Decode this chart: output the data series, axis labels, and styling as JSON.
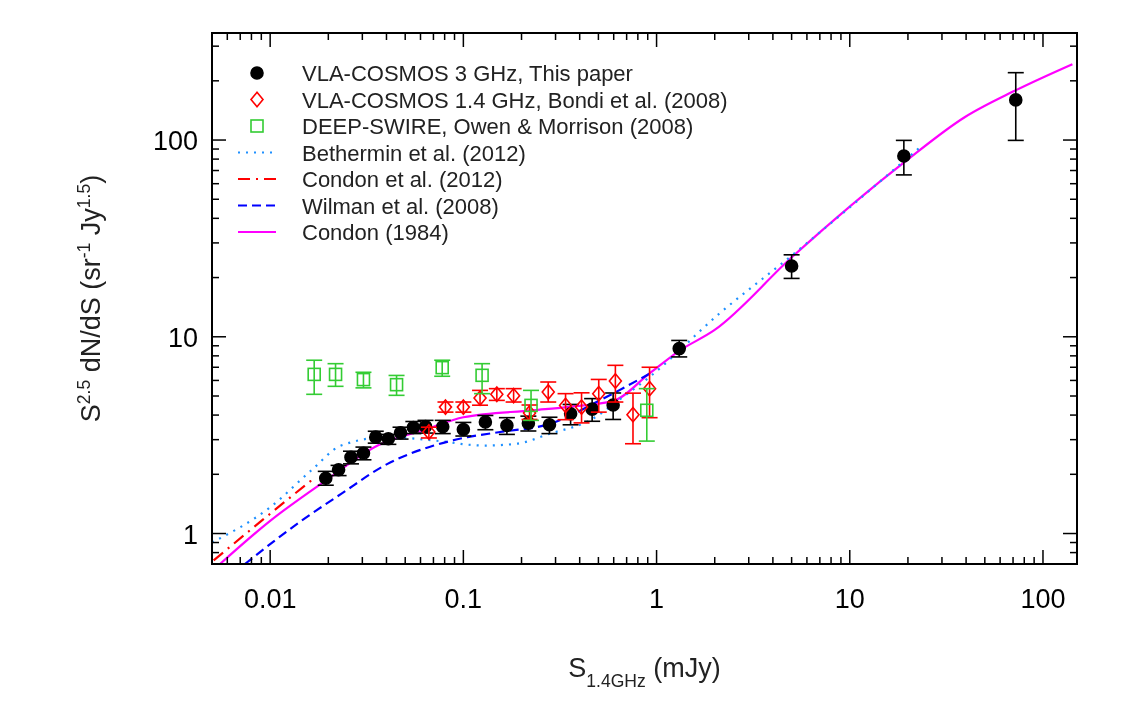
{
  "chart_data": {
    "type": "scatter",
    "xlabel": "S$_{1.4GHz}$ (mJy)",
    "ylabel": "S$^{2.5}$ dN/dS  (sr$^{-1}$ Jy$^{1.5}$)",
    "log": "xy",
    "xlim": [
      0.005,
      150
    ],
    "ylim": [
      0.7,
      350
    ],
    "xticks": [
      {
        "value": 0.005,
        "label": null
      },
      {
        "value": 0.006,
        "label": null
      },
      {
        "value": 0.007,
        "label": null
      },
      {
        "value": 0.008,
        "label": null
      },
      {
        "value": 0.009,
        "label": null
      },
      0.01,
      {
        "value": 0.02,
        "label": null
      },
      {
        "value": 0.03,
        "label": null
      },
      {
        "value": 0.04,
        "label": null
      },
      {
        "value": 0.05,
        "label": null
      },
      {
        "value": 0.06,
        "label": null
      },
      {
        "value": 0.07,
        "label": null
      },
      {
        "value": 0.08,
        "label": null
      },
      {
        "value": 0.09,
        "label": null
      },
      0.1,
      {
        "value": 0.2,
        "label": null
      },
      {
        "value": 0.3,
        "label": null
      },
      {
        "value": 0.4,
        "label": null
      },
      {
        "value": 0.5,
        "label": null
      },
      {
        "value": 0.6,
        "label": null
      },
      {
        "value": 0.7,
        "label": null
      },
      {
        "value": 0.8,
        "label": null
      },
      {
        "value": 0.9,
        "label": null
      },
      1,
      {
        "value": 2,
        "label": null
      },
      {
        "value": 3,
        "label": null
      },
      {
        "value": 4,
        "label": null
      },
      {
        "value": 5,
        "label": null
      },
      {
        "value": 6,
        "label": null
      },
      {
        "value": 7,
        "label": null
      },
      {
        "value": 8,
        "label": null
      },
      {
        "value": 9,
        "label": null
      },
      10,
      {
        "value": 20,
        "label": null
      },
      {
        "value": 30,
        "label": null
      },
      {
        "value": 40,
        "label": null
      },
      {
        "value": 50,
        "label": null
      },
      {
        "value": 60,
        "label": null
      },
      {
        "value": 70,
        "label": null
      },
      {
        "value": 80,
        "label": null
      },
      {
        "value": 90,
        "label": null
      },
      100
    ],
    "yticks": [
      {
        "value": 0.7,
        "label": null
      },
      {
        "value": 0.8,
        "label": null
      },
      {
        "value": 0.9,
        "label": null
      },
      1,
      {
        "value": 2,
        "label": null
      },
      {
        "value": 3,
        "label": null
      },
      {
        "value": 4,
        "label": null
      },
      {
        "value": 5,
        "label": null
      },
      {
        "value": 6,
        "label": null
      },
      {
        "value": 7,
        "label": null
      },
      {
        "value": 8,
        "label": null
      },
      {
        "value": 9,
        "label": null
      },
      10,
      {
        "value": 20,
        "label": null
      },
      {
        "value": 30,
        "label": null
      },
      {
        "value": 40,
        "label": null
      },
      {
        "value": 50,
        "label": null
      },
      {
        "value": 60,
        "label": null
      },
      {
        "value": 70,
        "label": null
      },
      {
        "value": 80,
        "label": null
      },
      {
        "value": 90,
        "label": null
      },
      100,
      {
        "value": 200,
        "label": null
      },
      {
        "value": 300,
        "label": null
      }
    ],
    "legend": "top left",
    "series": [
      {
        "name": "Bethermin et al. (2012)",
        "type": "line",
        "line_style": "dotted",
        "color": "#1e90ff",
        "x": [
          0.005,
          0.01,
          0.0163,
          0.0233,
          0.0405,
          0.0703,
          0.127,
          0.189,
          0.281,
          0.452,
          0.67,
          0.92,
          2.11,
          5.04,
          22.7
        ],
        "values": [
          0.9,
          1.36,
          2.09,
          2.8,
          3.09,
          2.97,
          2.8,
          2.86,
          3.22,
          3.76,
          4.94,
          6.25,
          13.1,
          26.0,
          90.6
        ]
      },
      {
        "name": "Condon et al. (2012)",
        "type": "line",
        "line_style": "dashdot",
        "color": "#ff0000",
        "x": [
          0.0051,
          0.0095,
          0.0163
        ],
        "values": [
          0.73,
          1.21,
          1.86
        ]
      },
      {
        "name": "Wilman et al. (2008)",
        "type": "line",
        "line_style": "dashed",
        "color": "#0000ff",
        "x": [
          0.0074,
          0.0145,
          0.0233,
          0.0405,
          0.0703,
          0.105,
          0.155,
          0.281,
          0.508,
          0.92
        ],
        "values": [
          0.7,
          1.16,
          1.59,
          2.26,
          2.8,
          3.09,
          3.28,
          3.61,
          4.75,
          6.49
        ]
      },
      {
        "name": "Condon (1984)",
        "type": "line",
        "line_style": "solid",
        "color": "#ff00ff",
        "x": [
          0.0055,
          0.01,
          0.0194,
          0.036,
          0.0651,
          0.1,
          0.229,
          0.342,
          0.596,
          0.92,
          1.31,
          1.99,
          5.04,
          19.4,
          39.5,
          71.4,
          142
        ],
        "values": [
          0.7,
          1.16,
          1.86,
          2.8,
          3.4,
          3.9,
          4.23,
          4.39,
          4.72,
          6.51,
          8.48,
          10.8,
          25.5,
          77.9,
          131,
          178,
          243
        ]
      },
      {
        "name": "VLA-COSMOS 3 GHz, This paper",
        "marker": "circle",
        "color": "#000000",
        "x": [
          0.0194,
          0.0226,
          0.0262,
          0.0304,
          0.0352,
          0.0409,
          0.0473,
          0.0551,
          0.0637,
          0.0782,
          0.1,
          0.13,
          0.168,
          0.217,
          0.279,
          0.359,
          0.464,
          0.596,
          1.31,
          5.0,
          19.05,
          72.3
        ],
        "values": [
          1.91,
          2.11,
          2.44,
          2.56,
          3.09,
          3.03,
          3.25,
          3.46,
          3.5,
          3.49,
          3.38,
          3.69,
          3.54,
          3.64,
          3.57,
          4.06,
          4.29,
          4.5,
          8.71,
          22.9,
          82.9,
          160
        ],
        "errors": [
          [
            1.76,
            2.07
          ],
          [
            1.97,
            2.22
          ],
          [
            2.26,
            2.62
          ],
          [
            2.37,
            2.75
          ],
          [
            2.88,
            3.31
          ],
          [
            2.84,
            3.19
          ],
          [
            3.02,
            3.47
          ],
          [
            3.22,
            3.71
          ],
          [
            3.24,
            3.76
          ],
          [
            3.22,
            3.76
          ],
          [
            3.13,
            3.67
          ],
          [
            3.37,
            3.98
          ],
          [
            3.19,
            3.88
          ],
          [
            3.32,
            3.95
          ],
          [
            3.22,
            3.9
          ],
          [
            3.57,
            4.53
          ],
          [
            3.72,
            4.85
          ],
          [
            3.8,
            5.18
          ],
          [
            7.9,
            9.58
          ],
          [
            19.8,
            26.1
          ],
          [
            66.5,
            99.6
          ],
          [
            99.6,
            220
          ]
        ]
      },
      {
        "name": "VLA-COSMOS 1.4 GHz, Bondi et al. (2008)",
        "marker": "diamond",
        "color": "#ff0000",
        "x": [
          0.0663,
          0.0808,
          0.1,
          0.122,
          0.149,
          0.182,
          0.22,
          0.275,
          0.338,
          0.409,
          0.502,
          0.612,
          0.755,
          0.92
        ],
        "values": [
          3.28,
          4.39,
          4.39,
          4.88,
          5.1,
          5.02,
          4.1,
          5.24,
          4.48,
          4.39,
          5.14,
          5.96,
          4.02,
          5.45
        ],
        "errors": [
          [
            3.06,
            3.47
          ],
          [
            4.14,
            4.66
          ],
          [
            4.14,
            4.66
          ],
          [
            4.49,
            5.34
          ],
          [
            4.75,
            5.45
          ],
          [
            4.66,
            5.45
          ],
          [
            3.8,
            4.5
          ],
          [
            4.66,
            5.89
          ],
          [
            3.79,
            5.14
          ],
          [
            3.65,
            5.19
          ],
          [
            4.14,
            6.07
          ],
          [
            4.66,
            7.16
          ],
          [
            2.86,
            5.17
          ],
          [
            3.88,
            7.0
          ]
        ]
      },
      {
        "name": "DEEP-SWIRE, Owen & Morrison (2008)",
        "marker": "square",
        "color": "#33cc33",
        "x": [
          0.0169,
          0.0218,
          0.0304,
          0.0451,
          0.0777,
          0.125,
          0.224,
          0.89
        ],
        "values": [
          6.44,
          6.44,
          6.06,
          5.71,
          6.97,
          6.37,
          4.48,
          4.23
        ],
        "errors": [
          [
            5.1,
            7.6
          ],
          [
            5.6,
            7.3
          ],
          [
            5.5,
            6.6
          ],
          [
            5.04,
            6.36
          ],
          [
            6.3,
            7.6
          ],
          [
            5.14,
            7.3
          ],
          [
            3.76,
            5.34
          ],
          [
            2.95,
            5.45
          ]
        ]
      }
    ]
  }
}
